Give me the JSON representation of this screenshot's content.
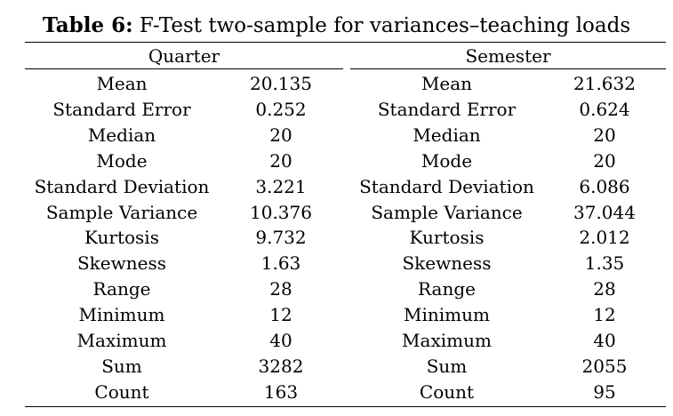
{
  "caption": {
    "label": "Table 6:",
    "text": "F-Test two-sample for variances–teaching loads"
  },
  "groups": {
    "left": "Quarter",
    "right": "Semester"
  },
  "rows": [
    {
      "q_label": "Mean",
      "q_value": "20.135",
      "s_label": "Mean",
      "s_value": "21.632"
    },
    {
      "q_label": "Standard Error",
      "q_value": "0.252",
      "s_label": "Standard Error",
      "s_value": "0.624"
    },
    {
      "q_label": "Median",
      "q_value": "20",
      "s_label": "Median",
      "s_value": "20"
    },
    {
      "q_label": "Mode",
      "q_value": "20",
      "s_label": "Mode",
      "s_value": "20"
    },
    {
      "q_label": "Standard Deviation",
      "q_value": "3.221",
      "s_label": "Standard Deviation",
      "s_value": "6.086"
    },
    {
      "q_label": "Sample Variance",
      "q_value": "10.376",
      "s_label": "Sample Variance",
      "s_value": "37.044"
    },
    {
      "q_label": "Kurtosis",
      "q_value": "9.732",
      "s_label": "Kurtosis",
      "s_value": "2.012"
    },
    {
      "q_label": "Skewness",
      "q_value": "1.63",
      "s_label": "Skewness",
      "s_value": "1.35"
    },
    {
      "q_label": "Range",
      "q_value": "28",
      "s_label": "Range",
      "s_value": "28"
    },
    {
      "q_label": "Minimum",
      "q_value": "12",
      "s_label": "Minimum",
      "s_value": "12"
    },
    {
      "q_label": "Maximum",
      "q_value": "40",
      "s_label": "Maximum",
      "s_value": "40"
    },
    {
      "q_label": "Sum",
      "q_value": "3282",
      "s_label": "Sum",
      "s_value": "2055"
    },
    {
      "q_label": "Count",
      "q_value": "163",
      "s_label": "Count",
      "s_value": "95"
    }
  ]
}
